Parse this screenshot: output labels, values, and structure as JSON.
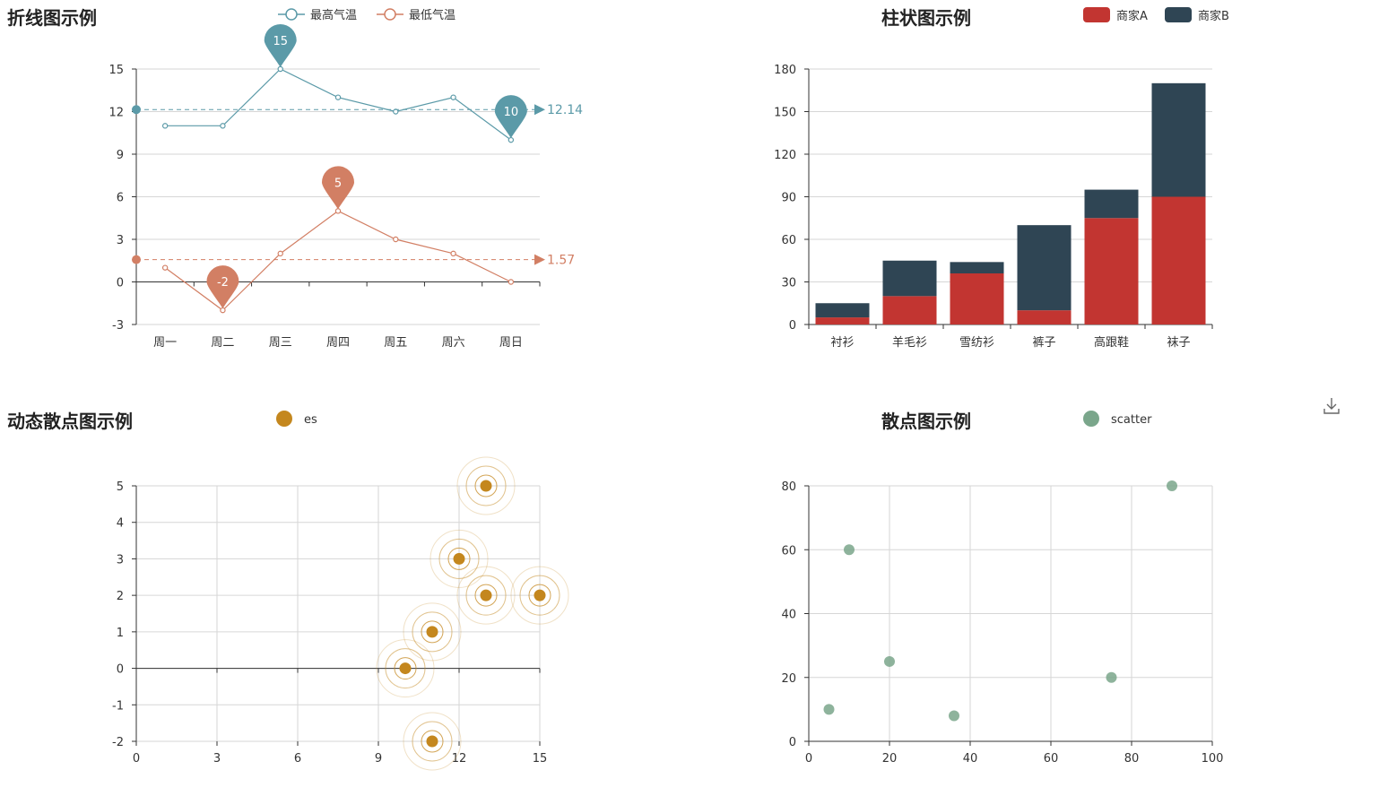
{
  "charts": {
    "line": {
      "title": "折线图示例"
    },
    "bar": {
      "title": "柱状图示例"
    },
    "effect": {
      "title": "动态散点图示例"
    },
    "scatter": {
      "title": "散点图示例"
    }
  },
  "toolbox": {
    "icon": "download-icon"
  },
  "colors": {
    "high": "#5b9aa8",
    "low": "#d27f64",
    "merchantA": "#c23531",
    "merchantB": "#2f4554",
    "es": "#c4871e",
    "scatter": "#7aa68b"
  },
  "chart_data": [
    {
      "id": "line",
      "type": "line",
      "title": "折线图示例",
      "categories": [
        "周一",
        "周二",
        "周三",
        "周四",
        "周五",
        "周六",
        "周日"
      ],
      "series": [
        {
          "name": "最高气温",
          "values": [
            11,
            11,
            15,
            13,
            12,
            13,
            10
          ],
          "markPoint": [
            "15",
            "10"
          ],
          "markLine": "12.14"
        },
        {
          "name": "最低气温",
          "values": [
            1,
            -2,
            2,
            5,
            3,
            2,
            0
          ],
          "markPoint": [
            "5",
            "-2"
          ],
          "markLine": "1.57"
        }
      ],
      "yticks": [
        "-3",
        "0",
        "3",
        "6",
        "9",
        "12",
        "15"
      ],
      "ylim": [
        -3,
        15
      ],
      "grid": "horizontal",
      "legend_position": "top-center"
    },
    {
      "id": "bar",
      "type": "bar",
      "title": "柱状图示例",
      "stacked": true,
      "categories": [
        "衬衫",
        "羊毛衫",
        "雪纺衫",
        "裤子",
        "高跟鞋",
        "袜子"
      ],
      "series": [
        {
          "name": "商家A",
          "values": [
            5,
            20,
            36,
            10,
            75,
            90
          ]
        },
        {
          "name": "商家B",
          "values": [
            10,
            25,
            8,
            60,
            20,
            80
          ]
        }
      ],
      "yticks": [
        "0",
        "30",
        "60",
        "90",
        "120",
        "150",
        "180"
      ],
      "ylim": [
        0,
        180
      ],
      "grid": "horizontal",
      "legend_position": "top-right"
    },
    {
      "id": "effect",
      "type": "scatter",
      "title": "动态散点图示例",
      "series": [
        {
          "name": "es",
          "points": [
            [
              10,
              0
            ],
            [
              11,
              1
            ],
            [
              11,
              -2
            ],
            [
              12,
              3
            ],
            [
              13,
              2
            ],
            [
              13,
              5
            ],
            [
              15,
              2
            ]
          ]
        }
      ],
      "xticks": [
        "0",
        "3",
        "6",
        "9",
        "12",
        "15"
      ],
      "yticks": [
        "-2",
        "-1",
        "0",
        "1",
        "2",
        "3",
        "4",
        "5"
      ],
      "xlim": [
        0,
        15
      ],
      "ylim": [
        -2,
        5
      ],
      "grid": "both",
      "legend_position": "top-center"
    },
    {
      "id": "scatter",
      "type": "scatter",
      "title": "散点图示例",
      "series": [
        {
          "name": "scatter",
          "points": [
            [
              5,
              10
            ],
            [
              10,
              60
            ],
            [
              20,
              25
            ],
            [
              36,
              8
            ],
            [
              75,
              20
            ],
            [
              90,
              80
            ]
          ]
        }
      ],
      "xticks": [
        "0",
        "20",
        "40",
        "60",
        "80",
        "100"
      ],
      "yticks": [
        "0",
        "20",
        "40",
        "60",
        "80"
      ],
      "xlim": [
        0,
        100
      ],
      "ylim": [
        0,
        80
      ],
      "grid": "both",
      "legend_position": "top-center"
    }
  ]
}
